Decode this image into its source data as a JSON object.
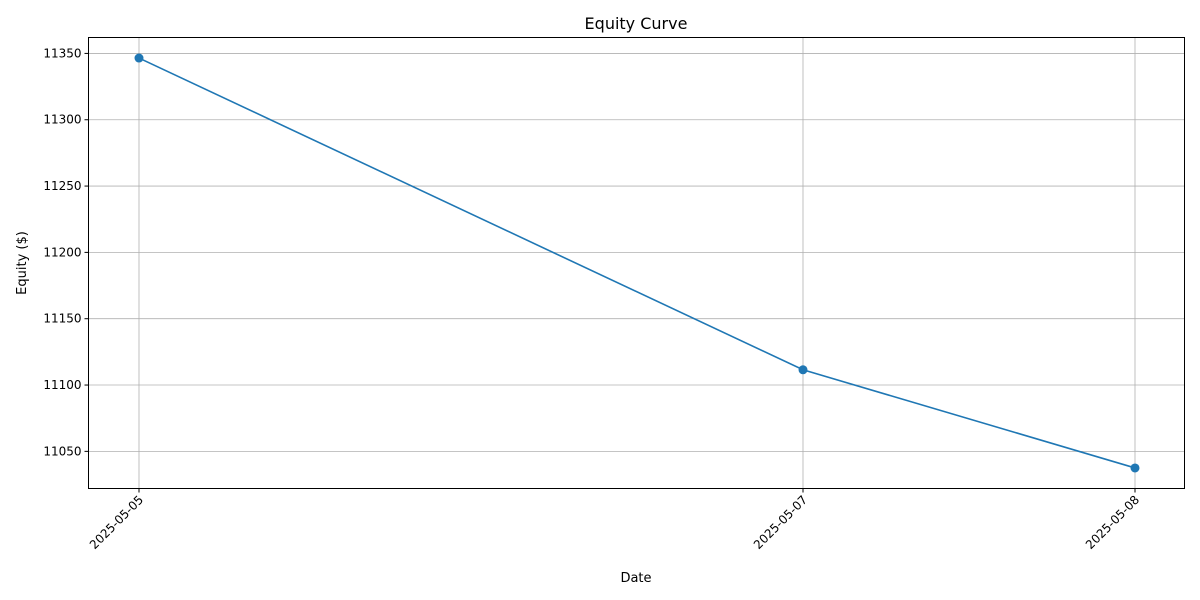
{
  "chart_data": {
    "type": "line",
    "title": "Equity Curve",
    "xlabel": "Date",
    "ylabel": "Equity ($)",
    "x": [
      "2025-05-05",
      "2025-05-07",
      "2025-05-08"
    ],
    "xticks": [
      "2025-05-05",
      "2025-05-07",
      "2025-05-08"
    ],
    "yticks": [
      11050,
      11100,
      11150,
      11200,
      11250,
      11300,
      11350
    ],
    "ylim": [
      11022,
      11362
    ],
    "series": [
      {
        "values": [
          11346.5,
          11111.5,
          11037.5
        ],
        "color": "#1f77b4",
        "marker": "circle"
      }
    ],
    "grid": true,
    "legend": "none"
  }
}
